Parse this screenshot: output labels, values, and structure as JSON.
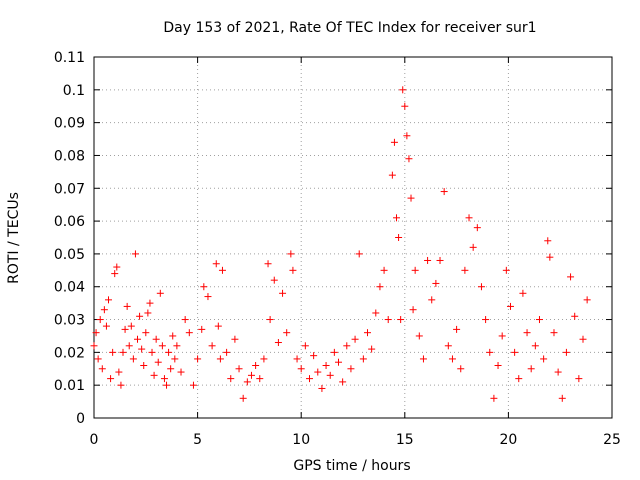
{
  "chart_data": {
    "type": "scatter",
    "title": "Day 153 of 2021, Rate Of TEC Index for receiver sur1",
    "xlabel": "GPS time / hours",
    "ylabel": "ROTI / TECUs",
    "xlim": [
      0,
      25
    ],
    "ylim": [
      0,
      0.11
    ],
    "xticks": [
      0,
      5,
      10,
      15,
      20,
      25
    ],
    "xtick_labels": [
      "0",
      "5",
      "10",
      "15",
      "20",
      "25"
    ],
    "yticks": [
      0,
      0.01,
      0.02,
      0.03,
      0.04,
      0.05,
      0.06,
      0.07,
      0.08,
      0.09,
      0.1,
      0.11
    ],
    "ytick_labels": [
      "0",
      "0.01",
      "0.02",
      "0.03",
      "0.04",
      "0.05",
      "0.06",
      "0.07",
      "0.08",
      "0.09",
      "0.1",
      "0.11"
    ],
    "grid": true,
    "marker": "+",
    "color": "#ff0000",
    "series": [
      {
        "name": "sur1",
        "points": [
          [
            0.0,
            0.022
          ],
          [
            0.1,
            0.026
          ],
          [
            0.2,
            0.018
          ],
          [
            0.3,
            0.03
          ],
          [
            0.4,
            0.015
          ],
          [
            0.5,
            0.033
          ],
          [
            0.6,
            0.028
          ],
          [
            0.7,
            0.036
          ],
          [
            0.8,
            0.012
          ],
          [
            0.9,
            0.02
          ],
          [
            1.0,
            0.044
          ],
          [
            1.1,
            0.046
          ],
          [
            1.2,
            0.014
          ],
          [
            1.3,
            0.01
          ],
          [
            1.4,
            0.02
          ],
          [
            1.5,
            0.027
          ],
          [
            1.6,
            0.034
          ],
          [
            1.7,
            0.022
          ],
          [
            1.8,
            0.028
          ],
          [
            1.9,
            0.018
          ],
          [
            2.0,
            0.05
          ],
          [
            2.1,
            0.024
          ],
          [
            2.2,
            0.031
          ],
          [
            2.3,
            0.021
          ],
          [
            2.4,
            0.016
          ],
          [
            2.5,
            0.026
          ],
          [
            2.6,
            0.032
          ],
          [
            2.7,
            0.035
          ],
          [
            2.8,
            0.02
          ],
          [
            2.9,
            0.013
          ],
          [
            3.0,
            0.024
          ],
          [
            3.1,
            0.017
          ],
          [
            3.2,
            0.038
          ],
          [
            3.3,
            0.022
          ],
          [
            3.4,
            0.012
          ],
          [
            3.5,
            0.01
          ],
          [
            3.6,
            0.02
          ],
          [
            3.7,
            0.015
          ],
          [
            3.8,
            0.025
          ],
          [
            3.9,
            0.018
          ],
          [
            4.0,
            0.022
          ],
          [
            4.2,
            0.014
          ],
          [
            4.4,
            0.03
          ],
          [
            4.6,
            0.026
          ],
          [
            4.8,
            0.01
          ],
          [
            5.0,
            0.018
          ],
          [
            5.2,
            0.027
          ],
          [
            5.3,
            0.04
          ],
          [
            5.5,
            0.037
          ],
          [
            5.7,
            0.022
          ],
          [
            5.9,
            0.047
          ],
          [
            6.0,
            0.028
          ],
          [
            6.1,
            0.018
          ],
          [
            6.2,
            0.045
          ],
          [
            6.4,
            0.02
          ],
          [
            6.6,
            0.012
          ],
          [
            6.8,
            0.024
          ],
          [
            7.0,
            0.015
          ],
          [
            7.2,
            0.006
          ],
          [
            7.4,
            0.011
          ],
          [
            7.6,
            0.013
          ],
          [
            7.8,
            0.016
          ],
          [
            8.0,
            0.012
          ],
          [
            8.2,
            0.018
          ],
          [
            8.4,
            0.047
          ],
          [
            8.5,
            0.03
          ],
          [
            8.7,
            0.042
          ],
          [
            8.9,
            0.023
          ],
          [
            9.1,
            0.038
          ],
          [
            9.3,
            0.026
          ],
          [
            9.5,
            0.05
          ],
          [
            9.6,
            0.045
          ],
          [
            9.8,
            0.018
          ],
          [
            10.0,
            0.015
          ],
          [
            10.2,
            0.022
          ],
          [
            10.4,
            0.012
          ],
          [
            10.6,
            0.019
          ],
          [
            10.8,
            0.014
          ],
          [
            11.0,
            0.009
          ],
          [
            11.2,
            0.016
          ],
          [
            11.4,
            0.013
          ],
          [
            11.6,
            0.02
          ],
          [
            11.8,
            0.017
          ],
          [
            12.0,
            0.011
          ],
          [
            12.2,
            0.022
          ],
          [
            12.4,
            0.015
          ],
          [
            12.6,
            0.024
          ],
          [
            12.8,
            0.05
          ],
          [
            13.0,
            0.018
          ],
          [
            13.2,
            0.026
          ],
          [
            13.4,
            0.021
          ],
          [
            13.6,
            0.032
          ],
          [
            13.8,
            0.04
          ],
          [
            14.0,
            0.045
          ],
          [
            14.2,
            0.03
          ],
          [
            14.4,
            0.074
          ],
          [
            14.5,
            0.084
          ],
          [
            14.6,
            0.061
          ],
          [
            14.7,
            0.055
          ],
          [
            14.8,
            0.03
          ],
          [
            14.9,
            0.1
          ],
          [
            15.0,
            0.095
          ],
          [
            15.1,
            0.086
          ],
          [
            15.2,
            0.079
          ],
          [
            15.3,
            0.067
          ],
          [
            15.4,
            0.033
          ],
          [
            15.5,
            0.045
          ],
          [
            15.7,
            0.025
          ],
          [
            15.9,
            0.018
          ],
          [
            16.1,
            0.048
          ],
          [
            16.3,
            0.036
          ],
          [
            16.5,
            0.041
          ],
          [
            16.7,
            0.048
          ],
          [
            16.9,
            0.069
          ],
          [
            17.1,
            0.022
          ],
          [
            17.3,
            0.018
          ],
          [
            17.5,
            0.027
          ],
          [
            17.7,
            0.015
          ],
          [
            17.9,
            0.045
          ],
          [
            18.1,
            0.061
          ],
          [
            18.3,
            0.052
          ],
          [
            18.5,
            0.058
          ],
          [
            18.7,
            0.04
          ],
          [
            18.9,
            0.03
          ],
          [
            19.1,
            0.02
          ],
          [
            19.3,
            0.006
          ],
          [
            19.5,
            0.016
          ],
          [
            19.7,
            0.025
          ],
          [
            19.9,
            0.045
          ],
          [
            20.1,
            0.034
          ],
          [
            20.3,
            0.02
          ],
          [
            20.5,
            0.012
          ],
          [
            20.7,
            0.038
          ],
          [
            20.9,
            0.026
          ],
          [
            21.1,
            0.015
          ],
          [
            21.3,
            0.022
          ],
          [
            21.5,
            0.03
          ],
          [
            21.7,
            0.018
          ],
          [
            21.9,
            0.054
          ],
          [
            22.0,
            0.049
          ],
          [
            22.2,
            0.026
          ],
          [
            22.4,
            0.014
          ],
          [
            22.6,
            0.006
          ],
          [
            22.8,
            0.02
          ],
          [
            23.0,
            0.043
          ],
          [
            23.2,
            0.031
          ],
          [
            23.4,
            0.012
          ],
          [
            23.6,
            0.024
          ],
          [
            23.8,
            0.036
          ]
        ]
      }
    ]
  }
}
